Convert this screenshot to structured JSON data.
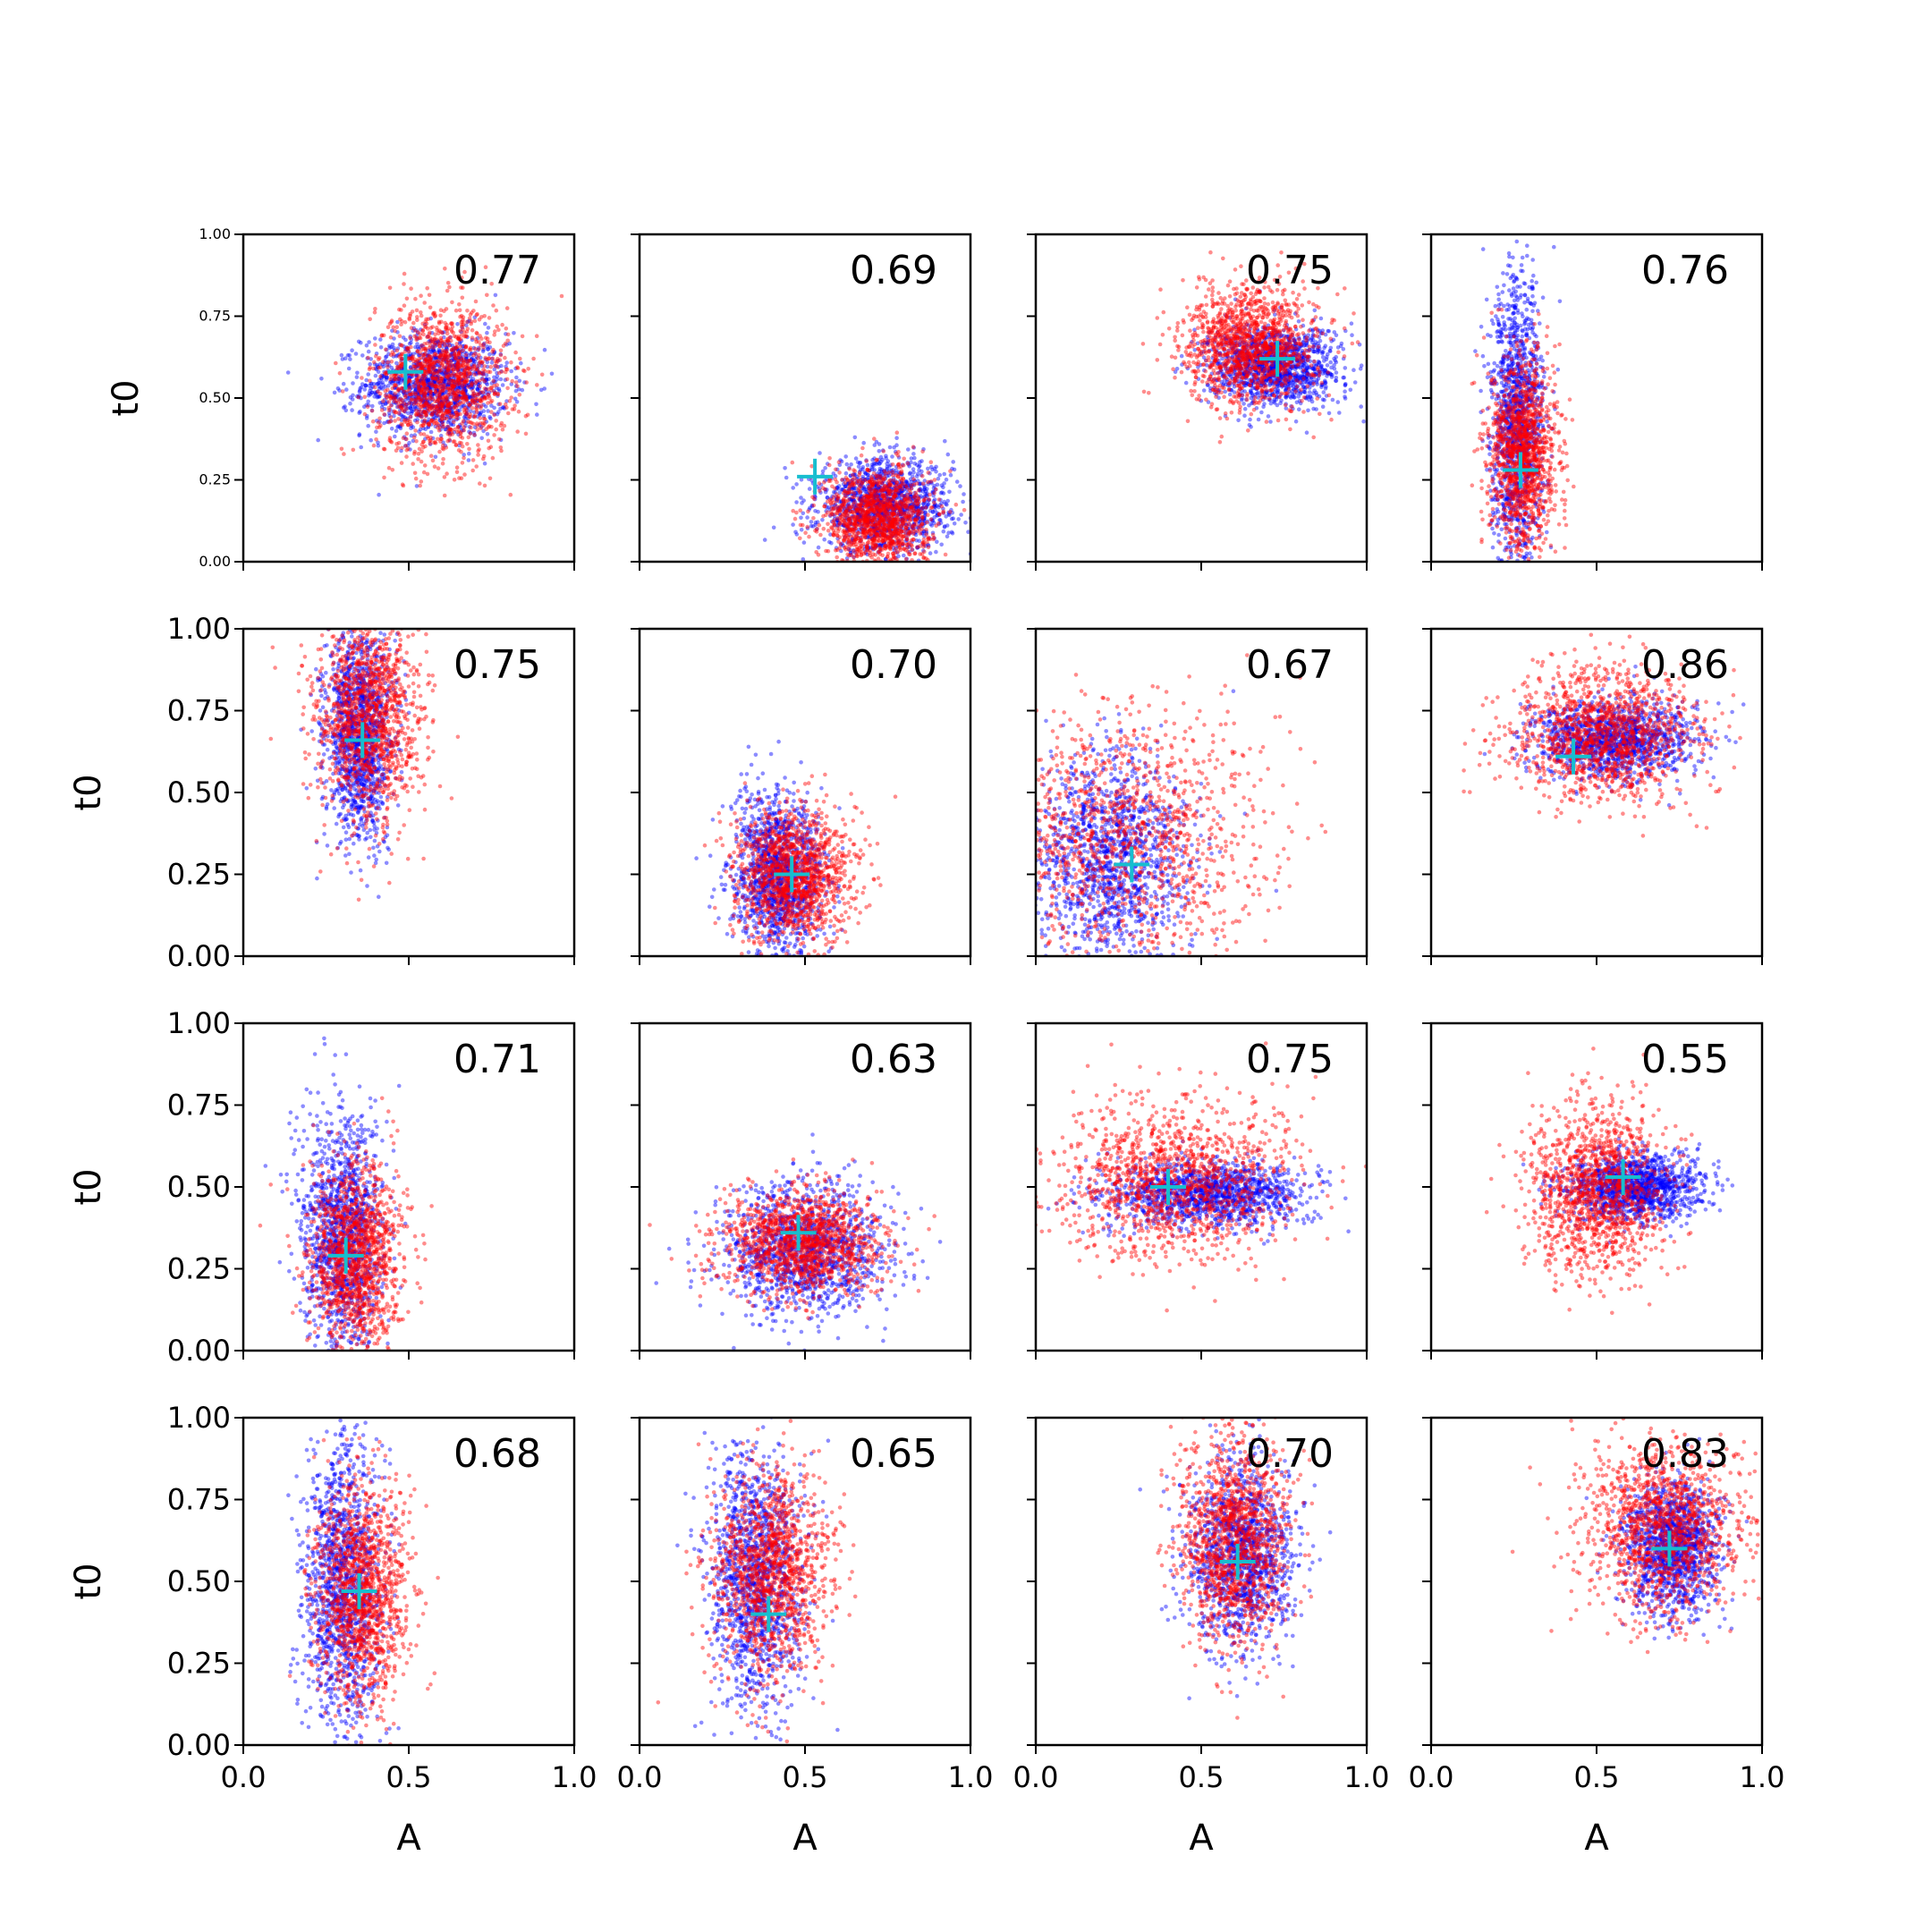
{
  "figure": {
    "x_axis_label": "A",
    "y_axis_label": "t0",
    "x_tick_labels": [
      "0.0",
      "0.5",
      "1.0"
    ],
    "y_tick_labels": [
      "0.00",
      "0.25",
      "0.50",
      "0.75",
      "1.00"
    ]
  },
  "colors": {
    "series_blue": "#0000ff",
    "series_red": "#ff0000",
    "marker": "#17becf"
  },
  "chart_data": [
    {
      "type": "scatter",
      "panel": 1,
      "label": "0.77",
      "xlim": [
        0,
        1
      ],
      "ylim": [
        0,
        1
      ],
      "marker": [
        0.49,
        0.58
      ],
      "series": [
        {
          "color": "blue",
          "center": [
            0.58,
            0.54
          ],
          "spread": [
            0.11,
            0.08
          ]
        },
        {
          "color": "red",
          "center": [
            0.6,
            0.55
          ],
          "spread": [
            0.1,
            0.12
          ]
        }
      ]
    },
    {
      "type": "scatter",
      "panel": 2,
      "label": "0.69",
      "xlim": [
        0,
        1
      ],
      "ylim": [
        0,
        1
      ],
      "marker": [
        0.53,
        0.26
      ],
      "series": [
        {
          "color": "blue",
          "center": [
            0.74,
            0.17
          ],
          "spread": [
            0.1,
            0.07
          ]
        },
        {
          "color": "red",
          "center": [
            0.72,
            0.13
          ],
          "spread": [
            0.08,
            0.08
          ]
        }
      ]
    },
    {
      "type": "scatter",
      "panel": 3,
      "label": "0.75",
      "xlim": [
        0,
        1
      ],
      "ylim": [
        0,
        1
      ],
      "marker": [
        0.73,
        0.62
      ],
      "series": [
        {
          "color": "blue",
          "center": [
            0.72,
            0.6
          ],
          "spread": [
            0.1,
            0.06
          ]
        },
        {
          "color": "red",
          "center": [
            0.65,
            0.66
          ],
          "spread": [
            0.1,
            0.09
          ]
        }
      ]
    },
    {
      "type": "scatter",
      "panel": 4,
      "label": "0.76",
      "xlim": [
        0,
        1
      ],
      "ylim": [
        0,
        1
      ],
      "marker": [
        0.27,
        0.28
      ],
      "series": [
        {
          "color": "blue",
          "center": [
            0.26,
            0.42
          ],
          "spread": [
            0.04,
            0.22
          ]
        },
        {
          "color": "red",
          "center": [
            0.28,
            0.33
          ],
          "spread": [
            0.05,
            0.15
          ]
        }
      ]
    },
    {
      "type": "scatter",
      "panel": 5,
      "label": "0.75",
      "xlim": [
        0,
        1
      ],
      "ylim": [
        0,
        1
      ],
      "marker": [
        0.36,
        0.66
      ],
      "series": [
        {
          "color": "blue",
          "center": [
            0.35,
            0.68
          ],
          "spread": [
            0.05,
            0.16
          ]
        },
        {
          "color": "red",
          "center": [
            0.38,
            0.72
          ],
          "spread": [
            0.08,
            0.16
          ]
        }
      ]
    },
    {
      "type": "scatter",
      "panel": 6,
      "label": "0.70",
      "xlim": [
        0,
        1
      ],
      "ylim": [
        0,
        1
      ],
      "marker": [
        0.46,
        0.25
      ],
      "series": [
        {
          "color": "blue",
          "center": [
            0.42,
            0.25
          ],
          "spread": [
            0.07,
            0.12
          ]
        },
        {
          "color": "red",
          "center": [
            0.47,
            0.25
          ],
          "spread": [
            0.09,
            0.1
          ]
        }
      ]
    },
    {
      "type": "scatter",
      "panel": 7,
      "label": "0.67",
      "xlim": [
        0,
        1
      ],
      "ylim": [
        0,
        1
      ],
      "marker": [
        0.29,
        0.28
      ],
      "series": [
        {
          "color": "blue",
          "center": [
            0.22,
            0.3
          ],
          "spread": [
            0.12,
            0.16
          ]
        },
        {
          "color": "red",
          "center": [
            0.25,
            0.35
          ],
          "spread": [
            0.22,
            0.2
          ]
        }
      ]
    },
    {
      "type": "scatter",
      "panel": 8,
      "label": "0.86",
      "xlim": [
        0,
        1
      ],
      "ylim": [
        0,
        1
      ],
      "marker": [
        0.43,
        0.61
      ],
      "series": [
        {
          "color": "blue",
          "center": [
            0.55,
            0.66
          ],
          "spread": [
            0.12,
            0.06
          ]
        },
        {
          "color": "red",
          "center": [
            0.52,
            0.68
          ],
          "spread": [
            0.14,
            0.1
          ]
        }
      ]
    },
    {
      "type": "scatter",
      "panel": 9,
      "label": "0.71",
      "xlim": [
        0,
        1
      ],
      "ylim": [
        0,
        1
      ],
      "marker": [
        0.31,
        0.29
      ],
      "series": [
        {
          "color": "blue",
          "center": [
            0.3,
            0.36
          ],
          "spread": [
            0.06,
            0.18
          ]
        },
        {
          "color": "red",
          "center": [
            0.34,
            0.28
          ],
          "spread": [
            0.07,
            0.14
          ]
        }
      ]
    },
    {
      "type": "scatter",
      "panel": 10,
      "label": "0.63",
      "xlim": [
        0,
        1
      ],
      "ylim": [
        0,
        1
      ],
      "marker": [
        0.48,
        0.36
      ],
      "series": [
        {
          "color": "blue",
          "center": [
            0.5,
            0.3
          ],
          "spread": [
            0.12,
            0.1
          ]
        },
        {
          "color": "red",
          "center": [
            0.5,
            0.33
          ],
          "spread": [
            0.12,
            0.08
          ]
        }
      ]
    },
    {
      "type": "scatter",
      "panel": 11,
      "label": "0.75",
      "xlim": [
        0,
        1
      ],
      "ylim": [
        0,
        1
      ],
      "marker": [
        0.4,
        0.5
      ],
      "series": [
        {
          "color": "blue",
          "center": [
            0.52,
            0.48
          ],
          "spread": [
            0.15,
            0.05
          ]
        },
        {
          "color": "red",
          "center": [
            0.42,
            0.52
          ],
          "spread": [
            0.18,
            0.12
          ]
        }
      ]
    },
    {
      "type": "scatter",
      "panel": 12,
      "label": "0.55",
      "xlim": [
        0,
        1
      ],
      "ylim": [
        0,
        1
      ],
      "marker": [
        0.58,
        0.53
      ],
      "series": [
        {
          "color": "blue",
          "center": [
            0.62,
            0.5
          ],
          "spread": [
            0.1,
            0.05
          ]
        },
        {
          "color": "red",
          "center": [
            0.5,
            0.5
          ],
          "spread": [
            0.1,
            0.13
          ]
        }
      ]
    },
    {
      "type": "scatter",
      "panel": 13,
      "label": "0.68",
      "xlim": [
        0,
        1
      ],
      "ylim": [
        0,
        1
      ],
      "marker": [
        0.35,
        0.47
      ],
      "series": [
        {
          "color": "blue",
          "center": [
            0.3,
            0.48
          ],
          "spread": [
            0.06,
            0.22
          ]
        },
        {
          "color": "red",
          "center": [
            0.36,
            0.45
          ],
          "spread": [
            0.07,
            0.16
          ]
        }
      ]
    },
    {
      "type": "scatter",
      "panel": 14,
      "label": "0.65",
      "xlim": [
        0,
        1
      ],
      "ylim": [
        0,
        1
      ],
      "marker": [
        0.39,
        0.4
      ],
      "series": [
        {
          "color": "blue",
          "center": [
            0.35,
            0.5
          ],
          "spread": [
            0.07,
            0.2
          ]
        },
        {
          "color": "red",
          "center": [
            0.4,
            0.52
          ],
          "spread": [
            0.09,
            0.16
          ]
        }
      ]
    },
    {
      "type": "scatter",
      "panel": 15,
      "label": "0.70",
      "xlim": [
        0,
        1
      ],
      "ylim": [
        0,
        1
      ],
      "marker": [
        0.61,
        0.56
      ],
      "series": [
        {
          "color": "blue",
          "center": [
            0.62,
            0.58
          ],
          "spread": [
            0.08,
            0.14
          ]
        },
        {
          "color": "red",
          "center": [
            0.6,
            0.62
          ],
          "spread": [
            0.08,
            0.16
          ]
        }
      ]
    },
    {
      "type": "scatter",
      "panel": 16,
      "label": "0.83",
      "xlim": [
        0,
        1
      ],
      "ylim": [
        0,
        1
      ],
      "marker": [
        0.72,
        0.6
      ],
      "series": [
        {
          "color": "blue",
          "center": [
            0.73,
            0.6
          ],
          "spread": [
            0.07,
            0.1
          ]
        },
        {
          "color": "red",
          "center": [
            0.7,
            0.66
          ],
          "spread": [
            0.12,
            0.13
          ]
        }
      ]
    }
  ]
}
